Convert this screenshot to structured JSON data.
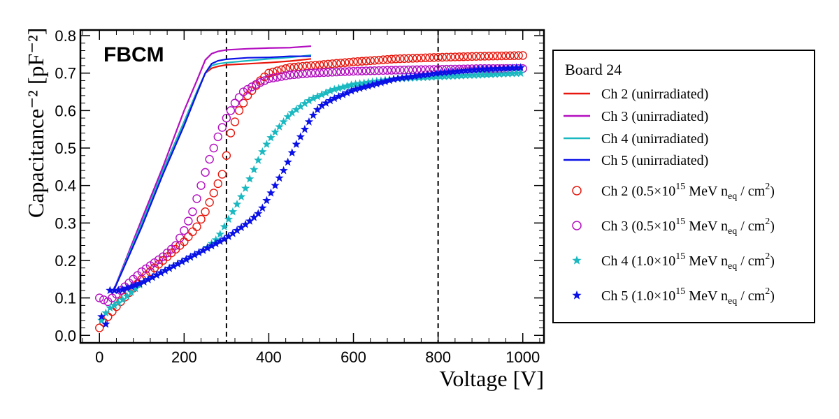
{
  "chart_data": {
    "type": "scatter",
    "xlabel": "Voltage [V]",
    "ylabel": "Capacitance⁻² [pF⁻²]",
    "xlim": [
      -45,
      1050
    ],
    "ylim": [
      -0.02,
      0.815
    ],
    "xticks": [
      0,
      200,
      400,
      600,
      800,
      1000
    ],
    "yticks": [
      0.0,
      0.1,
      0.2,
      0.3,
      0.4,
      0.5,
      0.6,
      0.7,
      0.8
    ],
    "grid": false,
    "annotation": "FBCM",
    "vertical_lines": [
      300,
      800
    ],
    "legend": {
      "title": "Board 24",
      "placement": "outside-right"
    },
    "series": [
      {
        "name": "Ch 2 (unirradiated)",
        "style": "line",
        "color": "#e8170d",
        "x": [
          30,
          100,
          150,
          200,
          230,
          250,
          265,
          280,
          300,
          350,
          400,
          450,
          500
        ],
        "y": [
          0.11,
          0.3,
          0.44,
          0.57,
          0.65,
          0.7,
          0.713,
          0.718,
          0.722,
          0.725,
          0.728,
          0.732,
          0.738
        ]
      },
      {
        "name": "Ch 3 (unirradiated)",
        "style": "line",
        "color": "#b30ec0",
        "x": [
          30,
          100,
          150,
          200,
          230,
          250,
          265,
          280,
          300,
          350,
          400,
          450,
          500
        ],
        "y": [
          0.11,
          0.31,
          0.45,
          0.6,
          0.68,
          0.735,
          0.752,
          0.758,
          0.762,
          0.765,
          0.767,
          0.768,
          0.772
        ]
      },
      {
        "name": "Ch 4 (unirradiated)",
        "style": "line",
        "color": "#1ab8c0",
        "x": [
          30,
          100,
          150,
          200,
          230,
          250,
          265,
          280,
          300,
          350,
          400,
          450,
          500
        ],
        "y": [
          0.11,
          0.3,
          0.44,
          0.57,
          0.65,
          0.7,
          0.72,
          0.725,
          0.728,
          0.733,
          0.738,
          0.742,
          0.748
        ]
      },
      {
        "name": "Ch 5 (unirradiated)",
        "style": "line",
        "color": "#0a10e6",
        "x": [
          30,
          100,
          150,
          200,
          230,
          250,
          265,
          280,
          300,
          350,
          400,
          450,
          500
        ],
        "y": [
          0.11,
          0.29,
          0.43,
          0.56,
          0.645,
          0.7,
          0.725,
          0.733,
          0.737,
          0.741,
          0.742,
          0.745,
          0.745
        ]
      },
      {
        "name": "Ch 2 (0.5×10¹⁵ MeV nₑq / cm²)",
        "legend_text": {
          "prefix": "Ch 2 (0.5×10",
          "sup": "15",
          "middle": " MeV n",
          "sub": "eq",
          "suffix": " / cm",
          "sup2": "2",
          "close": ")"
        },
        "style": "open-circle",
        "color": "#e8170d",
        "x": [
          0,
          20,
          50,
          100,
          150,
          200,
          230,
          250,
          270,
          290,
          300,
          310,
          330,
          350,
          380,
          400,
          450,
          500,
          600,
          700,
          800,
          900,
          1000
        ],
        "y": [
          0.02,
          0.05,
          0.09,
          0.15,
          0.2,
          0.25,
          0.29,
          0.33,
          0.38,
          0.43,
          0.48,
          0.54,
          0.6,
          0.64,
          0.68,
          0.7,
          0.715,
          0.72,
          0.73,
          0.738,
          0.742,
          0.745,
          0.747
        ]
      },
      {
        "name": "Ch 3 (0.5×10¹⁵ MeV nₑq / cm²)",
        "legend_text": {
          "prefix": "Ch 3 (0.5×10",
          "sup": "15",
          "middle": " MeV n",
          "sub": "eq",
          "suffix": " / cm",
          "sup2": "2",
          "close": ")"
        },
        "style": "open-circle",
        "color": "#b30ec0",
        "x": [
          0,
          20,
          50,
          100,
          150,
          180,
          200,
          220,
          240,
          260,
          280,
          300,
          320,
          340,
          370,
          400,
          450,
          500,
          600,
          700,
          800,
          900,
          1000
        ],
        "y": [
          0.1,
          0.09,
          0.12,
          0.17,
          0.21,
          0.24,
          0.28,
          0.33,
          0.4,
          0.47,
          0.53,
          0.58,
          0.62,
          0.65,
          0.67,
          0.685,
          0.695,
          0.7,
          0.705,
          0.708,
          0.71,
          0.712,
          0.712
        ]
      },
      {
        "name": "Ch 4 (1.0×10¹⁵ MeV nₑq / cm²)",
        "legend_text": {
          "prefix": "Ch 4 (1.0×10",
          "sup": "15",
          "middle": " MeV n",
          "sub": "eq",
          "suffix": " / cm",
          "sup2": "2",
          "close": ")"
        },
        "style": "star",
        "color": "#1ab8c0",
        "x": [
          5,
          20,
          50,
          100,
          150,
          200,
          250,
          280,
          300,
          320,
          340,
          360,
          380,
          400,
          420,
          450,
          480,
          500,
          550,
          600,
          700,
          800,
          900,
          1000
        ],
        "y": [
          0.04,
          0.07,
          0.09,
          0.14,
          0.17,
          0.2,
          0.23,
          0.26,
          0.3,
          0.34,
          0.38,
          0.43,
          0.48,
          0.52,
          0.55,
          0.59,
          0.615,
          0.63,
          0.655,
          0.67,
          0.685,
          0.69,
          0.695,
          0.7
        ]
      },
      {
        "name": "Ch 5 (1.0×10¹⁵ MeV nₑq / cm²)",
        "legend_text": {
          "prefix": "Ch 5 (1.0×10",
          "sup": "15",
          "middle": " MeV n",
          "sub": "eq",
          "suffix": " / cm",
          "sup2": "2",
          "close": ")"
        },
        "style": "star",
        "color": "#0a10e6",
        "x": [
          5,
          15,
          25,
          50,
          100,
          150,
          200,
          250,
          300,
          350,
          380,
          400,
          420,
          440,
          460,
          480,
          500,
          520,
          550,
          600,
          650,
          700,
          800,
          900,
          1000
        ],
        "y": [
          0.05,
          0.03,
          0.12,
          0.12,
          0.14,
          0.17,
          0.2,
          0.23,
          0.26,
          0.3,
          0.33,
          0.37,
          0.41,
          0.45,
          0.5,
          0.54,
          0.58,
          0.61,
          0.63,
          0.655,
          0.67,
          0.685,
          0.7,
          0.71,
          0.715
        ]
      }
    ]
  }
}
